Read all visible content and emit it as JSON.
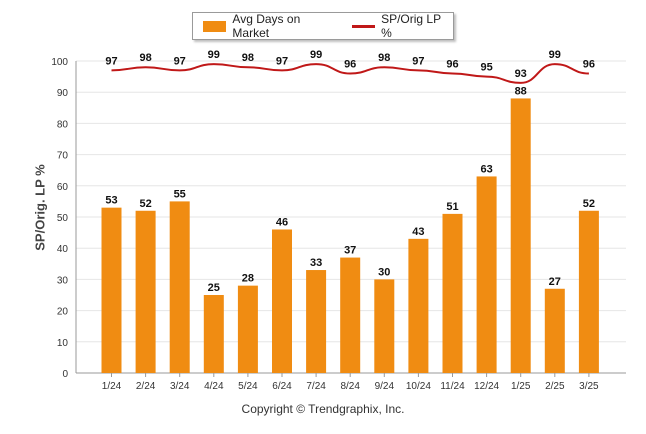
{
  "colors": {
    "bar": "#f08c12",
    "line": "#c01818",
    "grid": "#e6e6e6",
    "axis": "#999999"
  },
  "legend": {
    "bar_label": "Avg Days on Market",
    "line_label": "SP/Orig LP %"
  },
  "footer": {
    "copyright": "Copyright © Trendgraphix, Inc."
  },
  "chart_data": {
    "type": "bar",
    "categories": [
      "1/24",
      "2/24",
      "3/24",
      "4/24",
      "5/24",
      "6/24",
      "7/24",
      "8/24",
      "9/24",
      "10/24",
      "11/24",
      "12/24",
      "1/25",
      "2/25",
      "3/25"
    ],
    "series": [
      {
        "name": "Avg Days on Market",
        "type": "bar",
        "values": [
          53,
          52,
          55,
          25,
          28,
          46,
          33,
          37,
          30,
          43,
          51,
          63,
          88,
          27,
          52
        ]
      },
      {
        "name": "SP/Orig LP %",
        "type": "line",
        "values": [
          97,
          98,
          97,
          99,
          98,
          97,
          99,
          96,
          98,
          97,
          96,
          95,
          93,
          99,
          96
        ]
      }
    ],
    "ylabel": "SP/Orig. LP %",
    "ylim": [
      0,
      100
    ],
    "yticks": [
      0,
      10,
      20,
      30,
      40,
      50,
      60,
      70,
      80,
      90,
      100
    ],
    "grid": true,
    "legend_position": "top-center"
  }
}
